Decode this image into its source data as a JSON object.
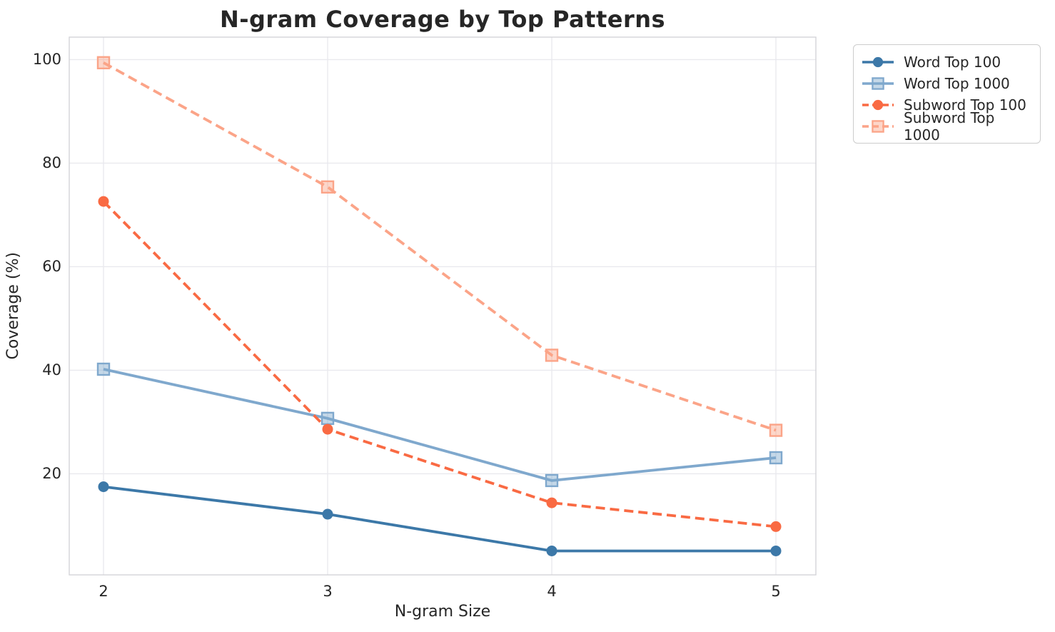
{
  "chart_data": {
    "type": "line",
    "title": "N-gram Coverage by Top Patterns",
    "xlabel": "N-gram Size",
    "ylabel": "Coverage (%)",
    "x": [
      2,
      3,
      4,
      5
    ],
    "xtick_labels": [
      "2",
      "3",
      "4",
      "5"
    ],
    "ytick_values": [
      20,
      40,
      60,
      80,
      100
    ],
    "ytick_labels": [
      "20",
      "40",
      "60",
      "80",
      "100"
    ],
    "ylim": [
      0.5,
      104.3
    ],
    "grid": true,
    "legend_position": "outside-upper-right",
    "series": [
      {
        "name": "Word Top 100",
        "color": "#3c78a8",
        "line": "solid",
        "marker": "circle",
        "values": [
          17.5,
          12.2,
          5.1,
          5.1
        ]
      },
      {
        "name": "Word Top 1000",
        "color": "#7fa8cd",
        "line": "solid",
        "marker": "square",
        "values": [
          40.2,
          30.7,
          18.7,
          23.1
        ]
      },
      {
        "name": "Subword Top 100",
        "color": "#f96a43",
        "line": "dashed",
        "marker": "circle",
        "values": [
          72.6,
          28.6,
          14.4,
          9.8
        ]
      },
      {
        "name": "Subword Top 1000",
        "color": "#fba488",
        "line": "dashed",
        "marker": "square",
        "values": [
          99.4,
          75.4,
          42.9,
          28.4
        ]
      }
    ]
  },
  "style": {
    "background": "#ffffff",
    "grid_color": "#e9e9ee",
    "spine_color": "#d4d4d8",
    "text_color": "#262626"
  }
}
